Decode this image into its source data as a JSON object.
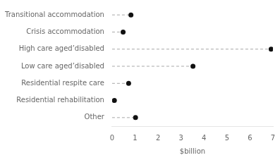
{
  "chart_data": {
    "type": "lollipop",
    "orientation": "horizontal",
    "categories": [
      "Transitional accommodation",
      "Crisis accommodation",
      "High care aged’disabled",
      "Low care aged’disabled",
      "Residential respite care",
      "Residential rehabilitation",
      "Other"
    ],
    "values": [
      0.82,
      0.48,
      6.92,
      3.52,
      0.72,
      0.1,
      1.02
    ],
    "color": "#111111",
    "xlabel": "$billion",
    "xlim": [
      0,
      7
    ],
    "xticks": [
      0,
      1,
      2,
      3,
      4,
      5,
      6,
      7
    ],
    "grid": false
  }
}
